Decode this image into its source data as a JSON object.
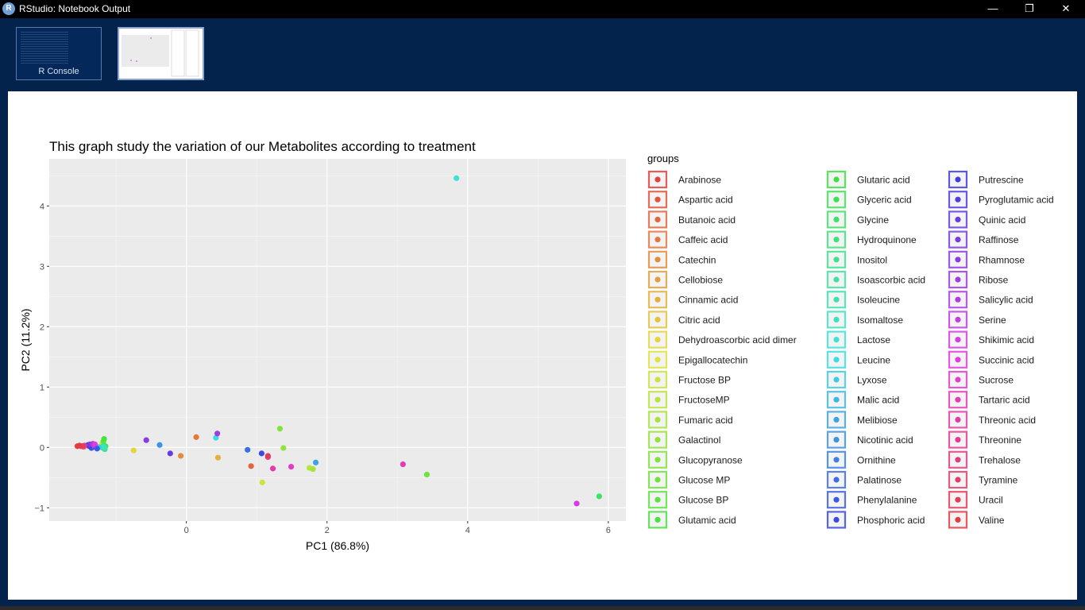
{
  "window": {
    "title": "RStudio: Notebook Output",
    "icon": "rstudio-icon",
    "controls": {
      "minimize": "—",
      "maximize": "❐",
      "close": "✕"
    }
  },
  "thumbnails": [
    {
      "label": "R Console",
      "icon": "console-thumbnail"
    },
    {
      "label": "",
      "icon": "plot-thumbnail"
    }
  ],
  "chart_data": {
    "type": "scatter",
    "title": "This graph study the variation of our Metabolites according to treatment",
    "xlabel": "PC1 (86.8%)",
    "ylabel": "PC2 (11.2%)",
    "xlim": [
      -1.95,
      6.25
    ],
    "ylim": [
      -1.22,
      4.78
    ],
    "xticks": [
      0,
      2,
      4,
      6
    ],
    "yticks": [
      -1,
      0,
      1,
      2,
      3,
      4
    ],
    "grid": true,
    "legend_title": "groups",
    "legend_position": "right",
    "groups": [
      "Arabinose",
      "Aspartic acid",
      "Butanoic acid",
      "Caffeic acid",
      "Catechin",
      "Cellobiose",
      "Cinnamic acid",
      "Citric acid",
      "Dehydroascorbic acid dimer",
      "Epigallocatechin",
      "Fructose BP",
      "FructoseMP",
      "Fumaric acid",
      "Galactinol",
      "Glucopyranose",
      "Glucose  MP",
      "Glucose BP",
      "Glutamic acid",
      "Glutaric acid",
      "Glyceric acid",
      "Glycine",
      "Hydroquinone",
      "Inositol",
      "Isoascorbic acid",
      "Isoleucine",
      "Isomaltose",
      "Lactose",
      "Leucine",
      "Lyxose",
      "Malic acid",
      "Melibiose",
      "Nicotinic acid",
      "Ornithine",
      "Palatinose",
      "Phenylalanine",
      "Phosphoric acid",
      "Putrescine",
      "Pyroglutamic acid",
      "Quinic acid",
      "Raffinose",
      "Rhamnose",
      "Ribose",
      "Salicylic acid",
      "Serine",
      "Shikimic acid",
      "Succinic acid",
      "Sucrose",
      "Tartaric acid",
      "Threonic acid",
      "Threonine",
      "Trehalose",
      "Tyramine",
      "Uracil",
      "Valine"
    ],
    "points": [
      {
        "x": -1.55,
        "y": 0.02,
        "g": "Arabinose"
      },
      {
        "x": -1.5,
        "y": 0.02,
        "g": "Aspartic acid"
      },
      {
        "x": -1.46,
        "y": 0.01,
        "g": "Butanoic acid"
      },
      {
        "x": -1.4,
        "y": 0.03,
        "g": "Caffeic acid"
      },
      {
        "x": -1.35,
        "y": 0.02,
        "g": "Catechin"
      },
      {
        "x": -1.28,
        "y": 0.01,
        "g": "Cellobiose"
      },
      {
        "x": -1.22,
        "y": 0.02,
        "g": "Cinnamic acid"
      },
      {
        "x": -1.18,
        "y": 0.03,
        "g": "Citric acid"
      },
      {
        "x": -0.75,
        "y": -0.05,
        "g": "Dehydroascorbic acid dimer"
      },
      {
        "x": -1.2,
        "y": 0.06,
        "g": "Epigallocatechin"
      },
      {
        "x": 1.08,
        "y": -0.58,
        "g": "Fructose BP"
      },
      {
        "x": 1.75,
        "y": -0.34,
        "g": "FructoseMP"
      },
      {
        "x": 1.8,
        "y": -0.36,
        "g": "Fumaric acid"
      },
      {
        "x": 1.38,
        "y": -0.01,
        "g": "Galactinol"
      },
      {
        "x": 1.33,
        "y": 0.31,
        "g": "Glucopyranose"
      },
      {
        "x": 3.42,
        "y": -0.45,
        "g": "Glucose  MP"
      },
      {
        "x": -1.18,
        "y": 0.1,
        "g": "Glucose BP"
      },
      {
        "x": -1.17,
        "y": 0.14,
        "g": "Glutamic acid"
      },
      {
        "x": -1.2,
        "y": 0.0,
        "g": "Glutaric acid"
      },
      {
        "x": -1.15,
        "y": 0.02,
        "g": "Glyceric acid"
      },
      {
        "x": 5.87,
        "y": -0.81,
        "g": "Glycine"
      },
      {
        "x": -1.18,
        "y": -0.01,
        "g": "Hydroquinone"
      },
      {
        "x": -1.16,
        "y": -0.03,
        "g": "Inositol"
      },
      {
        "x": -1.2,
        "y": 0.01,
        "g": "Isoascorbic acid"
      },
      {
        "x": -1.19,
        "y": 0.02,
        "g": "Isoleucine"
      },
      {
        "x": -1.17,
        "y": 0.0,
        "g": "Isomaltose"
      },
      {
        "x": 3.84,
        "y": 4.46,
        "g": "Lactose"
      },
      {
        "x": 0.42,
        "y": 0.16,
        "g": "Leucine"
      },
      {
        "x": -1.25,
        "y": 0.0,
        "g": "Lyxose"
      },
      {
        "x": -1.3,
        "y": 0.02,
        "g": "Malic acid"
      },
      {
        "x": 1.84,
        "y": -0.25,
        "g": "Melibiose"
      },
      {
        "x": -0.38,
        "y": 0.04,
        "g": "Nicotinic acid"
      },
      {
        "x": -1.32,
        "y": 0.01,
        "g": "Ornithine"
      },
      {
        "x": 0.87,
        "y": -0.04,
        "g": "Palatinose"
      },
      {
        "x": -1.35,
        "y": -0.01,
        "g": "Phenylalanine"
      },
      {
        "x": 1.07,
        "y": -0.1,
        "g": "Phosphoric acid"
      },
      {
        "x": -1.38,
        "y": 0.02,
        "g": "Putrescine"
      },
      {
        "x": -1.4,
        "y": 0.04,
        "g": "Pyroglutamic acid"
      },
      {
        "x": -0.23,
        "y": -0.1,
        "g": "Quinic acid"
      },
      {
        "x": -1.37,
        "y": 0.05,
        "g": "Raffinose"
      },
      {
        "x": -0.57,
        "y": 0.12,
        "g": "Rhamnose"
      },
      {
        "x": 0.44,
        "y": 0.23,
        "g": "Ribose"
      },
      {
        "x": -1.33,
        "y": 0.06,
        "g": "Salicylic acid"
      },
      {
        "x": -1.31,
        "y": 0.03,
        "g": "Serine"
      },
      {
        "x": 5.55,
        "y": -0.93,
        "g": "Shikimic acid"
      },
      {
        "x": -1.3,
        "y": 0.05,
        "g": "Succinic acid"
      },
      {
        "x": 1.49,
        "y": -0.32,
        "g": "Sucrose"
      },
      {
        "x": 3.08,
        "y": -0.28,
        "g": "Tartaric acid"
      },
      {
        "x": 1.23,
        "y": -0.35,
        "g": "Threonic acid"
      },
      {
        "x": 1.16,
        "y": -0.16,
        "g": "Threonine"
      },
      {
        "x": -1.45,
        "y": 0.03,
        "g": "Trehalose"
      },
      {
        "x": -1.48,
        "y": 0.02,
        "g": "Tyramine"
      },
      {
        "x": 1.16,
        "y": -0.14,
        "g": "Uracil"
      },
      {
        "x": -1.52,
        "y": 0.03,
        "g": "Valine"
      },
      {
        "x": 0.14,
        "y": 0.17,
        "g": "Caffeic acid"
      },
      {
        "x": -0.08,
        "y": -0.14,
        "g": "Catechin"
      },
      {
        "x": 0.45,
        "y": -0.17,
        "g": "Cinnamic acid"
      },
      {
        "x": 0.92,
        "y": -0.31,
        "g": "Butanoic acid"
      },
      {
        "x": -1.27,
        "y": -0.02,
        "g": "Phenylalanine"
      }
    ]
  }
}
